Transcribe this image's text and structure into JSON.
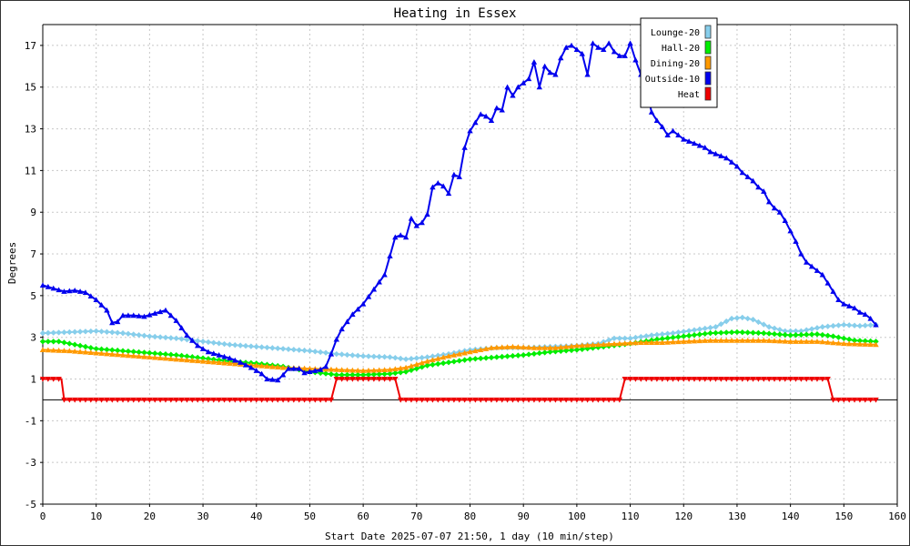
{
  "chart_data": {
    "type": "line",
    "title": "Heating in Essex",
    "xlabel": "Start Date 2025-07-07 21:50, 1 day (10 min/step)",
    "ylabel": "Degrees",
    "xlim": [
      0,
      160
    ],
    "ylim": [
      -5,
      18
    ],
    "x_ticks": [
      0,
      10,
      20,
      30,
      40,
      50,
      60,
      70,
      80,
      90,
      100,
      110,
      120,
      130,
      140,
      150,
      160
    ],
    "y_ticks": [
      -5,
      -3,
      -1,
      1,
      3,
      5,
      7,
      9,
      11,
      13,
      15,
      17
    ],
    "grid": true,
    "legend_position": "top-right",
    "series": [
      {
        "name": "Lounge-20",
        "color": "#87ceeb",
        "marker": "diamond",
        "points": [
          [
            0,
            3.2
          ],
          [
            5,
            3.25
          ],
          [
            10,
            3.3
          ],
          [
            15,
            3.2
          ],
          [
            20,
            3.05
          ],
          [
            25,
            2.95
          ],
          [
            30,
            2.8
          ],
          [
            35,
            2.65
          ],
          [
            40,
            2.55
          ],
          [
            45,
            2.45
          ],
          [
            50,
            2.35
          ],
          [
            55,
            2.2
          ],
          [
            60,
            2.1
          ],
          [
            65,
            2.05
          ],
          [
            68,
            1.95
          ],
          [
            72,
            2.05
          ],
          [
            76,
            2.2
          ],
          [
            80,
            2.4
          ],
          [
            85,
            2.5
          ],
          [
            90,
            2.5
          ],
          [
            95,
            2.55
          ],
          [
            100,
            2.6
          ],
          [
            104,
            2.7
          ],
          [
            107,
            2.95
          ],
          [
            110,
            2.95
          ],
          [
            114,
            3.1
          ],
          [
            118,
            3.2
          ],
          [
            122,
            3.35
          ],
          [
            126,
            3.5
          ],
          [
            129,
            3.9
          ],
          [
            131,
            3.95
          ],
          [
            133,
            3.85
          ],
          [
            136,
            3.5
          ],
          [
            139,
            3.3
          ],
          [
            142,
            3.3
          ],
          [
            146,
            3.5
          ],
          [
            150,
            3.6
          ],
          [
            153,
            3.55
          ],
          [
            156,
            3.6
          ]
        ]
      },
      {
        "name": "Hall-20",
        "color": "#00ee00",
        "marker": "diamond",
        "points": [
          [
            0,
            2.8
          ],
          [
            3,
            2.8
          ],
          [
            6,
            2.65
          ],
          [
            10,
            2.45
          ],
          [
            15,
            2.35
          ],
          [
            20,
            2.25
          ],
          [
            25,
            2.15
          ],
          [
            30,
            2.0
          ],
          [
            35,
            1.85
          ],
          [
            40,
            1.75
          ],
          [
            45,
            1.6
          ],
          [
            50,
            1.35
          ],
          [
            55,
            1.2
          ],
          [
            60,
            1.2
          ],
          [
            65,
            1.25
          ],
          [
            68,
            1.35
          ],
          [
            72,
            1.65
          ],
          [
            76,
            1.8
          ],
          [
            80,
            1.95
          ],
          [
            85,
            2.05
          ],
          [
            90,
            2.15
          ],
          [
            95,
            2.3
          ],
          [
            100,
            2.4
          ],
          [
            105,
            2.55
          ],
          [
            110,
            2.7
          ],
          [
            115,
            2.9
          ],
          [
            120,
            3.05
          ],
          [
            125,
            3.2
          ],
          [
            130,
            3.25
          ],
          [
            135,
            3.2
          ],
          [
            140,
            3.1
          ],
          [
            145,
            3.15
          ],
          [
            148,
            3.05
          ],
          [
            152,
            2.85
          ],
          [
            156,
            2.8
          ]
        ]
      },
      {
        "name": "Dining-20",
        "color": "#ff9900",
        "marker": "triangle",
        "points": [
          [
            0,
            2.4
          ],
          [
            5,
            2.35
          ],
          [
            10,
            2.25
          ],
          [
            15,
            2.15
          ],
          [
            20,
            2.05
          ],
          [
            25,
            1.95
          ],
          [
            30,
            1.85
          ],
          [
            35,
            1.75
          ],
          [
            40,
            1.65
          ],
          [
            45,
            1.55
          ],
          [
            50,
            1.5
          ],
          [
            55,
            1.45
          ],
          [
            60,
            1.4
          ],
          [
            65,
            1.45
          ],
          [
            68,
            1.55
          ],
          [
            72,
            1.85
          ],
          [
            76,
            2.1
          ],
          [
            80,
            2.3
          ],
          [
            84,
            2.5
          ],
          [
            88,
            2.55
          ],
          [
            92,
            2.5
          ],
          [
            96,
            2.5
          ],
          [
            100,
            2.6
          ],
          [
            104,
            2.65
          ],
          [
            108,
            2.7
          ],
          [
            112,
            2.75
          ],
          [
            116,
            2.75
          ],
          [
            120,
            2.8
          ],
          [
            125,
            2.85
          ],
          [
            130,
            2.85
          ],
          [
            135,
            2.85
          ],
          [
            140,
            2.8
          ],
          [
            145,
            2.8
          ],
          [
            150,
            2.7
          ],
          [
            156,
            2.65
          ]
        ]
      },
      {
        "name": "Outside-10",
        "color": "#0000ee",
        "marker": "triangle",
        "points": [
          [
            0,
            5.5
          ],
          [
            2,
            5.35
          ],
          [
            4,
            5.2
          ],
          [
            6,
            5.25
          ],
          [
            8,
            5.15
          ],
          [
            10,
            4.8
          ],
          [
            12,
            4.3
          ],
          [
            13,
            3.7
          ],
          [
            14,
            3.75
          ],
          [
            15,
            4.05
          ],
          [
            17,
            4.05
          ],
          [
            19,
            4.0
          ],
          [
            21,
            4.15
          ],
          [
            23,
            4.3
          ],
          [
            25,
            3.8
          ],
          [
            27,
            3.1
          ],
          [
            29,
            2.6
          ],
          [
            31,
            2.3
          ],
          [
            33,
            2.15
          ],
          [
            35,
            2.0
          ],
          [
            37,
            1.8
          ],
          [
            39,
            1.55
          ],
          [
            41,
            1.25
          ],
          [
            42,
            1.0
          ],
          [
            44,
            0.95
          ],
          [
            45,
            1.2
          ],
          [
            46,
            1.5
          ],
          [
            48,
            1.5
          ],
          [
            49,
            1.3
          ],
          [
            50,
            1.35
          ],
          [
            52,
            1.45
          ],
          [
            53,
            1.6
          ],
          [
            54,
            2.2
          ],
          [
            55,
            2.9
          ],
          [
            56,
            3.4
          ],
          [
            58,
            4.1
          ],
          [
            60,
            4.6
          ],
          [
            62,
            5.3
          ],
          [
            64,
            6.0
          ],
          [
            65,
            6.9
          ],
          [
            66,
            7.8
          ],
          [
            67,
            7.9
          ],
          [
            68,
            7.8
          ],
          [
            69,
            8.7
          ],
          [
            70,
            8.35
          ],
          [
            71,
            8.5
          ],
          [
            72,
            8.9
          ],
          [
            73,
            10.2
          ],
          [
            74,
            10.4
          ],
          [
            75,
            10.25
          ],
          [
            76,
            9.9
          ],
          [
            77,
            10.8
          ],
          [
            78,
            10.7
          ],
          [
            79,
            12.1
          ],
          [
            80,
            12.9
          ],
          [
            81,
            13.3
          ],
          [
            82,
            13.7
          ],
          [
            83,
            13.6
          ],
          [
            84,
            13.4
          ],
          [
            85,
            14.0
          ],
          [
            86,
            13.9
          ],
          [
            87,
            15.0
          ],
          [
            88,
            14.6
          ],
          [
            89,
            15.0
          ],
          [
            90,
            15.2
          ],
          [
            91,
            15.4
          ],
          [
            92,
            16.2
          ],
          [
            93,
            15.0
          ],
          [
            94,
            16.0
          ],
          [
            95,
            15.7
          ],
          [
            96,
            15.6
          ],
          [
            97,
            16.4
          ],
          [
            98,
            16.9
          ],
          [
            99,
            17.0
          ],
          [
            100,
            16.8
          ],
          [
            101,
            16.6
          ],
          [
            102,
            15.6
          ],
          [
            103,
            17.1
          ],
          [
            104,
            16.9
          ],
          [
            105,
            16.8
          ],
          [
            106,
            17.1
          ],
          [
            107,
            16.7
          ],
          [
            108,
            16.5
          ],
          [
            109,
            16.5
          ],
          [
            110,
            17.1
          ],
          [
            111,
            16.3
          ],
          [
            112,
            15.6
          ],
          [
            113,
            14.9
          ],
          [
            114,
            13.8
          ],
          [
            115,
            13.4
          ],
          [
            116,
            13.1
          ],
          [
            117,
            12.7
          ],
          [
            118,
            12.9
          ],
          [
            119,
            12.7
          ],
          [
            120,
            12.5
          ],
          [
            121,
            12.4
          ],
          [
            122,
            12.3
          ],
          [
            123,
            12.2
          ],
          [
            124,
            12.1
          ],
          [
            125,
            11.9
          ],
          [
            126,
            11.8
          ],
          [
            127,
            11.7
          ],
          [
            128,
            11.6
          ],
          [
            129,
            11.4
          ],
          [
            130,
            11.2
          ],
          [
            131,
            10.9
          ],
          [
            132,
            10.7
          ],
          [
            133,
            10.5
          ],
          [
            134,
            10.2
          ],
          [
            135,
            10.0
          ],
          [
            136,
            9.5
          ],
          [
            137,
            9.2
          ],
          [
            138,
            9.0
          ],
          [
            139,
            8.6
          ],
          [
            140,
            8.1
          ],
          [
            141,
            7.6
          ],
          [
            142,
            7.0
          ],
          [
            143,
            6.6
          ],
          [
            144,
            6.4
          ],
          [
            145,
            6.2
          ],
          [
            146,
            6.0
          ],
          [
            147,
            5.6
          ],
          [
            148,
            5.2
          ],
          [
            149,
            4.8
          ],
          [
            150,
            4.6
          ],
          [
            151,
            4.5
          ],
          [
            152,
            4.4
          ],
          [
            153,
            4.2
          ],
          [
            154,
            4.1
          ],
          [
            155,
            3.9
          ],
          [
            156,
            3.6
          ]
        ]
      },
      {
        "name": "Heat",
        "color": "#ee0000",
        "marker": "triangle-down",
        "points": [
          [
            0,
            1
          ],
          [
            3.5,
            1
          ],
          [
            4,
            0
          ],
          [
            54,
            0
          ],
          [
            55,
            1
          ],
          [
            66,
            1
          ],
          [
            67,
            0
          ],
          [
            108,
            0
          ],
          [
            109,
            1
          ],
          [
            147,
            1
          ],
          [
            148,
            0
          ],
          [
            156,
            0
          ]
        ]
      }
    ]
  }
}
